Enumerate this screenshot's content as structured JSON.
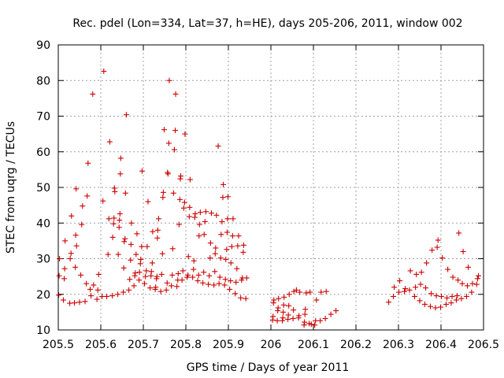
{
  "chart_data": {
    "type": "scatter",
    "title": "Rec. pdel (Lon=334, Lat=37, h=HE), days 205-206, 2011, window 002",
    "xlabel": "GPS time / Days of year 2011",
    "ylabel": "STEC from uqrg / TECUs",
    "xlim": [
      205.5,
      206.5
    ],
    "ylim": [
      10,
      90
    ],
    "x_ticks": [
      "205.5",
      "205.6",
      "205.7",
      "205.8",
      "205.9",
      "206",
      "206.1",
      "206.2",
      "206.3",
      "206.4",
      "206.5"
    ],
    "y_ticks": [
      "10",
      "20",
      "30",
      "40",
      "50",
      "60",
      "70",
      "80",
      "90"
    ],
    "x_tick_values": [
      205.5,
      205.6,
      205.7,
      205.8,
      205.9,
      206.0,
      206.1,
      206.2,
      206.3,
      206.4,
      206.5
    ],
    "y_tick_values": [
      10,
      20,
      30,
      40,
      50,
      60,
      70,
      80,
      90
    ],
    "grid": true,
    "marker": "+",
    "color": "#cc0000",
    "series": [
      {
        "points": [
          [
            205.501,
            19.8
          ],
          [
            205.502,
            25.2
          ],
          [
            205.503,
            30.0
          ],
          [
            205.512,
            18.4
          ],
          [
            205.514,
            24.4
          ],
          [
            205.515,
            27.2
          ],
          [
            205.516,
            35.0
          ],
          [
            205.527,
            17.5
          ],
          [
            205.528,
            30.0
          ],
          [
            205.53,
            31.5
          ],
          [
            205.531,
            42.0
          ],
          [
            205.538,
            17.6
          ],
          [
            205.54,
            27.6
          ],
          [
            205.541,
            36.6
          ],
          [
            205.542,
            49.6
          ],
          [
            205.543,
            33.6
          ],
          [
            205.55,
            17.8
          ],
          [
            205.553,
            25.4
          ],
          [
            205.555,
            39.6
          ],
          [
            205.557,
            44.8
          ],
          [
            205.563,
            18.0
          ],
          [
            205.566,
            23.0
          ],
          [
            205.568,
            47.6
          ],
          [
            205.57,
            56.8
          ],
          [
            205.575,
            21.4
          ],
          [
            205.577,
            19.6
          ],
          [
            205.581,
            76.2
          ],
          [
            205.583,
            22.6
          ],
          [
            205.591,
            18.6
          ],
          [
            205.593,
            21.2
          ],
          [
            205.595,
            25.6
          ],
          [
            205.603,
            19.4
          ],
          [
            205.605,
            46.2
          ],
          [
            205.607,
            82.6
          ],
          [
            205.614,
            19.4
          ],
          [
            205.617,
            31.2
          ],
          [
            205.619,
            41.2
          ],
          [
            205.621,
            62.8
          ],
          [
            205.627,
            19.6
          ],
          [
            205.628,
            36.0
          ],
          [
            205.63,
            39.8
          ],
          [
            205.631,
            41.4
          ],
          [
            205.632,
            49.8
          ],
          [
            205.633,
            48.8
          ],
          [
            205.64,
            20.0
          ],
          [
            205.641,
            31.2
          ],
          [
            205.643,
            38.8
          ],
          [
            205.644,
            40.8
          ],
          [
            205.645,
            42.6
          ],
          [
            205.646,
            53.8
          ],
          [
            205.647,
            58.2
          ],
          [
            205.653,
            20.6
          ],
          [
            205.654,
            27.4
          ],
          [
            205.655,
            34.8
          ],
          [
            205.657,
            35.6
          ],
          [
            205.658,
            48.4
          ],
          [
            205.66,
            70.4
          ],
          [
            205.666,
            21.2
          ],
          [
            205.668,
            24.2
          ],
          [
            205.67,
            29.6
          ],
          [
            205.671,
            34.0
          ],
          [
            205.672,
            40.0
          ],
          [
            205.678,
            22.4
          ],
          [
            205.68,
            25.2
          ],
          [
            205.681,
            26.0
          ],
          [
            205.683,
            31.2
          ],
          [
            205.685,
            37.0
          ],
          [
            205.69,
            24.0
          ],
          [
            205.691,
            26.2
          ],
          [
            205.693,
            28.6
          ],
          [
            205.694,
            29.8
          ],
          [
            205.696,
            33.4
          ],
          [
            205.697,
            54.6
          ],
          [
            205.703,
            23.0
          ],
          [
            205.705,
            25.0
          ],
          [
            205.707,
            26.6
          ],
          [
            205.709,
            33.4
          ],
          [
            205.711,
            46.0
          ],
          [
            205.716,
            21.8
          ],
          [
            205.718,
            25.2
          ],
          [
            205.719,
            26.4
          ],
          [
            205.721,
            28.8
          ],
          [
            205.722,
            37.6
          ],
          [
            205.728,
            21.4
          ],
          [
            205.729,
            22.0
          ],
          [
            205.731,
            24.4
          ],
          [
            205.732,
            25.0
          ],
          [
            205.733,
            35.8
          ],
          [
            205.734,
            38.0
          ],
          [
            205.736,
            41.2
          ],
          [
            205.741,
            20.8
          ],
          [
            205.743,
            25.6
          ],
          [
            205.745,
            31.4
          ],
          [
            205.746,
            47.2
          ],
          [
            205.747,
            48.6
          ],
          [
            205.749,
            66.2
          ],
          [
            205.754,
            21.2
          ],
          [
            205.756,
            23.2
          ],
          [
            205.757,
            54.2
          ],
          [
            205.758,
            53.8
          ],
          [
            205.76,
            62.4
          ],
          [
            205.761,
            80.0
          ],
          [
            205.766,
            22.4
          ],
          [
            205.768,
            25.4
          ],
          [
            205.769,
            32.8
          ],
          [
            205.771,
            48.4
          ],
          [
            205.773,
            60.6
          ],
          [
            205.775,
            66.0
          ],
          [
            205.776,
            76.2
          ],
          [
            205.779,
            22.2
          ],
          [
            205.781,
            24.0
          ],
          [
            205.782,
            25.8
          ],
          [
            205.784,
            39.6
          ],
          [
            205.786,
            46.6
          ],
          [
            205.787,
            52.4
          ],
          [
            205.788,
            53.2
          ],
          [
            205.791,
            24.0
          ],
          [
            205.793,
            26.6
          ],
          [
            205.795,
            44.2
          ],
          [
            205.797,
            45.8
          ],
          [
            205.798,
            65.0
          ],
          [
            205.803,
            24.8
          ],
          [
            205.805,
            25.4
          ],
          [
            205.806,
            30.6
          ],
          [
            205.808,
            41.8
          ],
          [
            205.809,
            44.4
          ],
          [
            205.81,
            52.2
          ],
          [
            205.816,
            24.8
          ],
          [
            205.818,
            27.0
          ],
          [
            205.819,
            29.4
          ],
          [
            205.821,
            41.6
          ],
          [
            205.822,
            42.6
          ],
          [
            205.828,
            23.8
          ],
          [
            205.83,
            25.4
          ],
          [
            205.831,
            36.4
          ],
          [
            205.832,
            39.6
          ],
          [
            205.834,
            43.0
          ],
          [
            205.84,
            23.2
          ],
          [
            205.842,
            26.2
          ],
          [
            205.843,
            36.8
          ],
          [
            205.845,
            40.4
          ],
          [
            205.847,
            43.2
          ],
          [
            205.853,
            22.8
          ],
          [
            205.855,
            25.2
          ],
          [
            205.857,
            30.2
          ],
          [
            205.858,
            34.4
          ],
          [
            205.86,
            42.8
          ],
          [
            205.866,
            22.6
          ],
          [
            205.868,
            26.4
          ],
          [
            205.869,
            31.4
          ],
          [
            205.87,
            33.0
          ],
          [
            205.872,
            42.2
          ],
          [
            205.876,
            61.6
          ],
          [
            205.878,
            23.0
          ],
          [
            205.88,
            24.8
          ],
          [
            205.882,
            30.2
          ],
          [
            205.883,
            36.8
          ],
          [
            205.885,
            40.4
          ],
          [
            205.887,
            47.2
          ],
          [
            205.888,
            50.8
          ],
          [
            205.891,
            22.6
          ],
          [
            205.893,
            24.2
          ],
          [
            205.894,
            29.8
          ],
          [
            205.896,
            32.6
          ],
          [
            205.897,
            37.4
          ],
          [
            205.898,
            41.2
          ],
          [
            205.899,
            47.4
          ],
          [
            205.903,
            21.4
          ],
          [
            205.905,
            23.8
          ],
          [
            205.906,
            28.8
          ],
          [
            205.908,
            33.4
          ],
          [
            205.91,
            36.4
          ],
          [
            205.911,
            41.2
          ],
          [
            205.916,
            20.2
          ],
          [
            205.918,
            23.4
          ],
          [
            205.92,
            27.2
          ],
          [
            205.922,
            33.6
          ],
          [
            205.924,
            36.4
          ],
          [
            205.929,
            19.0
          ],
          [
            205.931,
            24.0
          ],
          [
            205.933,
            24.6
          ],
          [
            205.935,
            31.8
          ],
          [
            205.936,
            33.8
          ],
          [
            205.941,
            18.8
          ],
          [
            205.943,
            24.6
          ]
        ]
      },
      {
        "points": [
          [
            206.004,
            12.8
          ],
          [
            206.005,
            13.8
          ],
          [
            206.006,
            17.6
          ],
          [
            206.007,
            18.4
          ],
          [
            206.015,
            12.6
          ],
          [
            206.016,
            15.4
          ],
          [
            206.017,
            16.2
          ],
          [
            206.018,
            18.8
          ],
          [
            206.027,
            12.6
          ],
          [
            206.028,
            13.4
          ],
          [
            206.029,
            15.0
          ],
          [
            206.03,
            17.0
          ],
          [
            206.031,
            19.2
          ],
          [
            206.04,
            13.0
          ],
          [
            206.041,
            14.2
          ],
          [
            206.042,
            16.8
          ],
          [
            206.043,
            20.0
          ],
          [
            206.052,
            13.2
          ],
          [
            206.053,
            15.6
          ],
          [
            206.054,
            20.8
          ],
          [
            206.06,
            21.2
          ],
          [
            206.065,
            13.4
          ],
          [
            206.066,
            14.0
          ],
          [
            206.068,
            20.6
          ],
          [
            206.078,
            11.4
          ],
          [
            206.079,
            12.2
          ],
          [
            206.08,
            14.4
          ],
          [
            206.081,
            15.8
          ],
          [
            206.083,
            20.4
          ],
          [
            206.09,
            11.8
          ],
          [
            206.092,
            20.6
          ],
          [
            206.095,
            11.6
          ],
          [
            206.103,
            11.4
          ],
          [
            206.105,
            12.6
          ],
          [
            206.107,
            18.4
          ],
          [
            206.116,
            12.6
          ],
          [
            206.118,
            20.6
          ],
          [
            206.128,
            13.2
          ],
          [
            206.13,
            20.8
          ],
          [
            206.141,
            14.4
          ],
          [
            206.153,
            15.4
          ]
        ]
      },
      {
        "points": [
          [
            206.277,
            17.8
          ],
          [
            206.288,
            19.4
          ],
          [
            206.29,
            22.0
          ],
          [
            206.301,
            20.6
          ],
          [
            206.303,
            23.8
          ],
          [
            206.314,
            20.8
          ],
          [
            206.316,
            21.6
          ],
          [
            206.326,
            21.2
          ],
          [
            206.328,
            26.6
          ],
          [
            206.338,
            19.4
          ],
          [
            206.34,
            22.0
          ],
          [
            206.342,
            25.6
          ],
          [
            206.35,
            18.2
          ],
          [
            206.352,
            22.8
          ],
          [
            206.354,
            26.2
          ],
          [
            206.362,
            17.2
          ],
          [
            206.364,
            21.8
          ],
          [
            206.366,
            28.8
          ],
          [
            206.375,
            16.6
          ],
          [
            206.377,
            20.2
          ],
          [
            206.379,
            32.4
          ],
          [
            206.387,
            16.2
          ],
          [
            206.389,
            19.6
          ],
          [
            206.391,
            33.2
          ],
          [
            206.393,
            35.2
          ],
          [
            206.399,
            16.4
          ],
          [
            206.401,
            19.4
          ],
          [
            206.403,
            30.2
          ],
          [
            206.412,
            17.2
          ],
          [
            206.414,
            19.0
          ],
          [
            206.416,
            27.0
          ],
          [
            206.424,
            17.6
          ],
          [
            206.426,
            19.4
          ],
          [
            206.428,
            24.8
          ],
          [
            206.436,
            18.4
          ],
          [
            206.438,
            19.6
          ],
          [
            206.44,
            24.0
          ],
          [
            206.442,
            37.2
          ],
          [
            206.448,
            18.8
          ],
          [
            206.45,
            23.0
          ],
          [
            206.452,
            32.0
          ],
          [
            206.46,
            19.4
          ],
          [
            206.462,
            22.4
          ],
          [
            206.464,
            27.6
          ],
          [
            206.472,
            20.6
          ],
          [
            206.474,
            23.0
          ],
          [
            206.484,
            22.8
          ],
          [
            206.486,
            24.4
          ],
          [
            206.488,
            25.2
          ]
        ]
      }
    ]
  }
}
